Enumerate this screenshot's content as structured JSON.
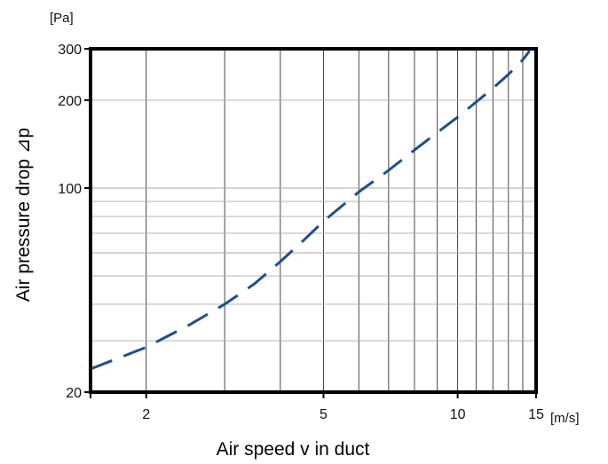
{
  "chart_data": {
    "type": "line",
    "title": "",
    "xlabel": "Air speed v in duct",
    "ylabel": "Air pressure drop ⊿p",
    "x_unit": "[m/s]",
    "y_unit": "[Pa]",
    "x_scale": "log",
    "y_scale": "log",
    "xlim": [
      1.5,
      15
    ],
    "ylim": [
      20,
      300
    ],
    "x_ticks": [
      2,
      5,
      10,
      15
    ],
    "x_tick_labels": [
      "2",
      "5",
      "10",
      "15"
    ],
    "y_ticks": [
      20,
      100,
      200,
      300
    ],
    "y_tick_labels": [
      "20",
      "100",
      "200",
      "300"
    ],
    "x_grid": [
      2,
      3,
      4,
      5,
      6,
      7,
      8,
      9,
      10,
      11,
      12,
      13,
      14
    ],
    "y_grid": [
      30,
      40,
      50,
      60,
      70,
      80,
      90,
      100,
      200
    ],
    "grid": true,
    "line_style": "dashed",
    "line_color": "#1f4e8c",
    "series": [
      {
        "x": [
          1.5,
          2.0,
          2.5,
          3.0,
          3.5,
          4.0,
          4.5,
          5.0,
          6.0,
          7.0,
          8.0,
          9.0,
          10.0,
          11.0,
          12.0,
          13.0,
          14.0,
          14.5
        ],
        "y": [
          24,
          28.5,
          34,
          40,
          47,
          56,
          66,
          77,
          97,
          115,
          135,
          155,
          175,
          197,
          220,
          245,
          275,
          295
        ]
      }
    ]
  }
}
